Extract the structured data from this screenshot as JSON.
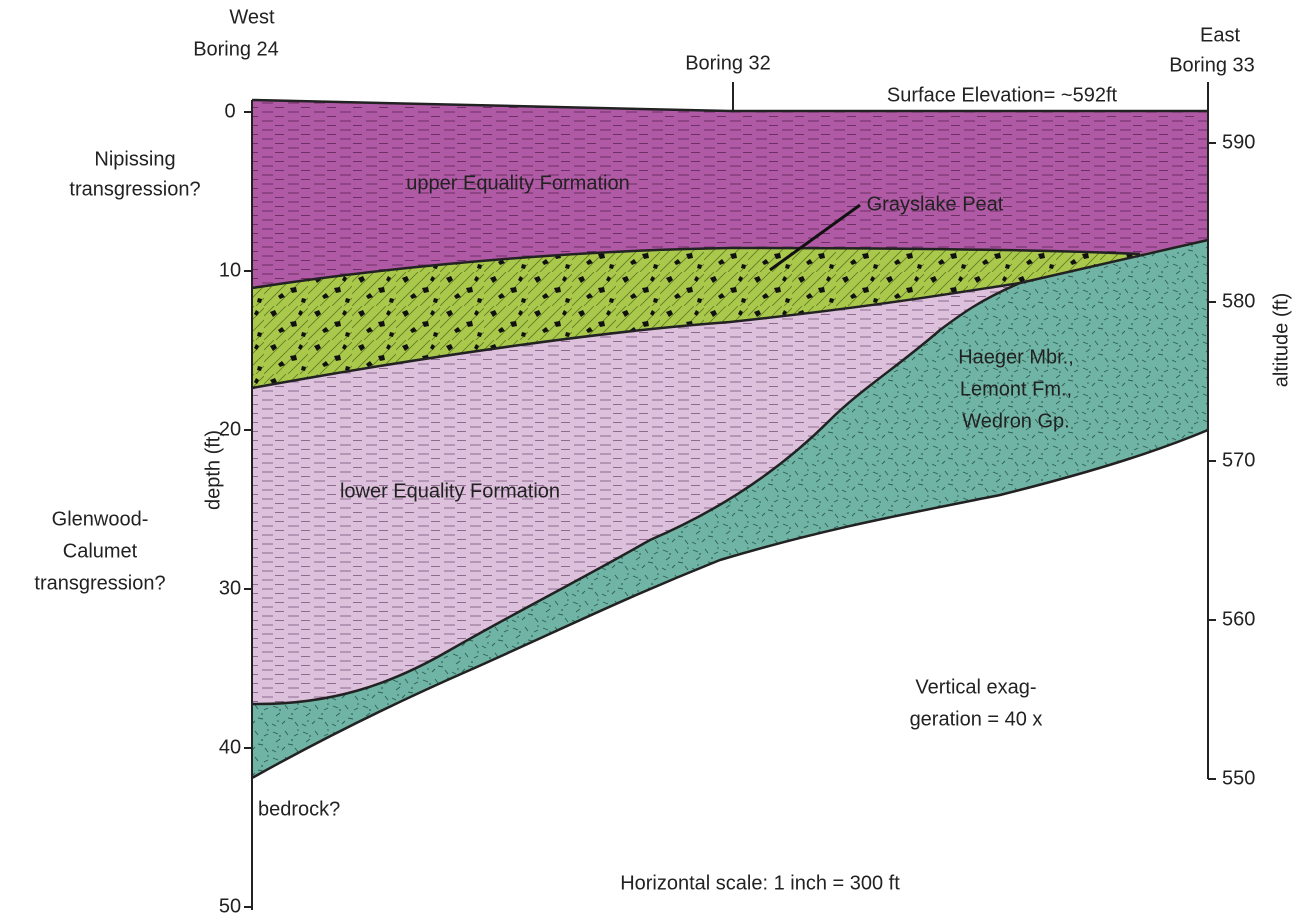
{
  "borings": [
    {
      "direction": "West",
      "name": "Boring 24"
    },
    {
      "name": "Boring 32"
    },
    {
      "direction": "East",
      "name": "Boring 33"
    }
  ],
  "surface_elevation": "Surface Elevation= ~592ft",
  "transgressions": [
    {
      "lines": [
        "Nipissing",
        "transgression?"
      ]
    },
    {
      "lines": [
        "Glenwood-",
        "Calumet",
        "transgression?"
      ]
    }
  ],
  "units": {
    "upper_equality": "upper Equality Formation",
    "grayslake_peat": "Grayslake Peat",
    "haeger": [
      "Haeger Mbr.,",
      "Lemont Fm.,",
      "Wedron Gp."
    ],
    "lower_equality": "lower Equality Formation",
    "bedrock": "bedrock?"
  },
  "left_axis": {
    "label": "depth (ft)",
    "ticks": [
      0,
      10,
      20,
      30,
      40,
      50
    ]
  },
  "right_axis": {
    "label": "altitude (ft)",
    "ticks": [
      590,
      580,
      570,
      560,
      550
    ]
  },
  "notes": {
    "vertical_exaggeration": [
      "Vertical exag-",
      "geration = 40 x"
    ],
    "horizontal_scale": "Horizontal scale: 1 inch = 300 ft"
  }
}
